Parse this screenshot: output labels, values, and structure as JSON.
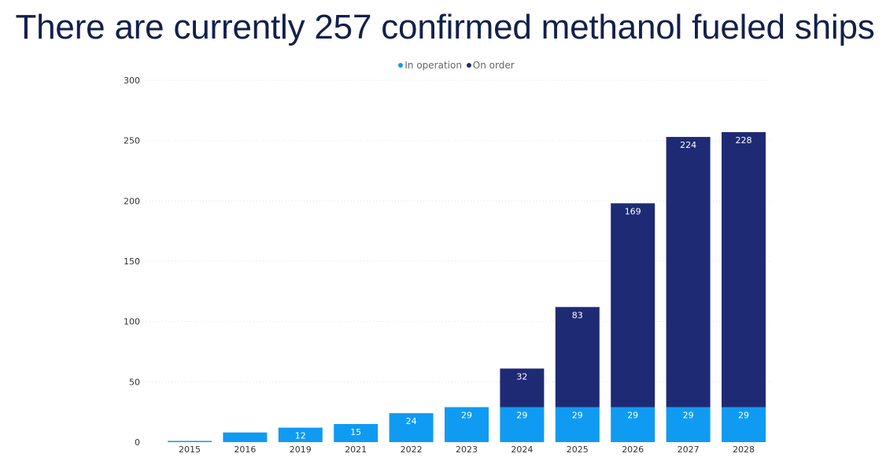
{
  "title": "There are currently 257 confirmed methanol fueled ships",
  "chart_data": {
    "type": "bar",
    "stacked": true,
    "categories": [
      "2015",
      "2016",
      "2019",
      "2021",
      "2022",
      "2023",
      "2024",
      "2025",
      "2026",
      "2027",
      "2028"
    ],
    "series": [
      {
        "name": "In operation",
        "color": "#0f9bf2",
        "values": [
          1,
          8,
          12,
          15,
          24,
          29,
          29,
          29,
          29,
          29,
          29
        ],
        "labels": [
          "",
          "",
          "12",
          "15",
          "24",
          "29",
          "29",
          "29",
          "29",
          "29",
          "29"
        ]
      },
      {
        "name": "On order",
        "color": "#1f2a74",
        "values": [
          0,
          0,
          0,
          0,
          0,
          0,
          32,
          83,
          169,
          224,
          228
        ],
        "labels": [
          "",
          "",
          "",
          "",
          "",
          "",
          "32",
          "83",
          "169",
          "224",
          "228"
        ]
      }
    ],
    "ylim": [
      0,
      300
    ],
    "yticks": [
      0,
      50,
      100,
      150,
      200,
      250,
      300
    ],
    "grid": true,
    "legend_position": "top-center"
  }
}
